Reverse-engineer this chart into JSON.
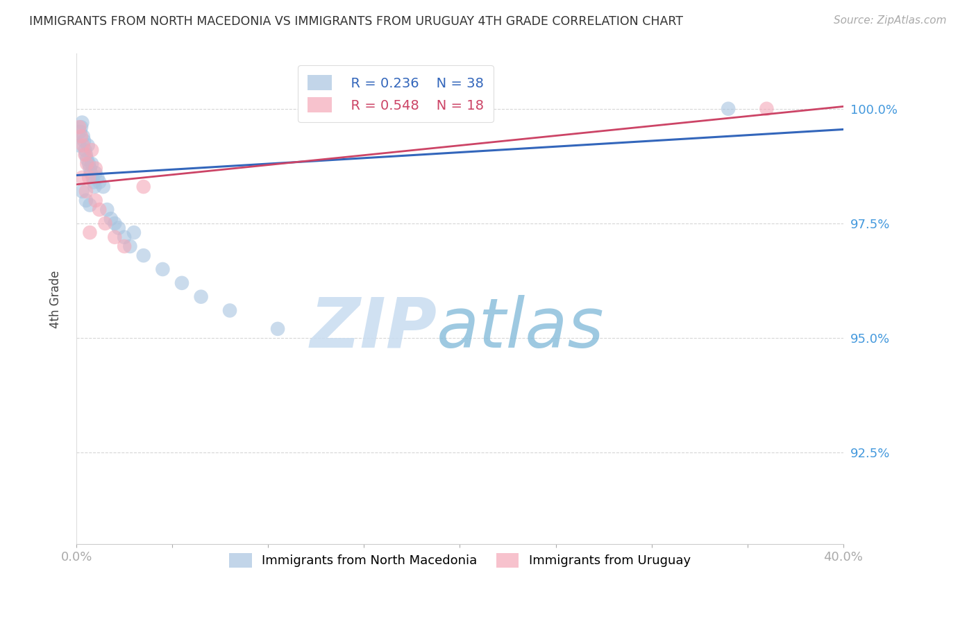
{
  "title": "IMMIGRANTS FROM NORTH MACEDONIA VS IMMIGRANTS FROM URUGUAY 4TH GRADE CORRELATION CHART",
  "source": "Source: ZipAtlas.com",
  "ylabel": "4th Grade",
  "ylabel_ticks": [
    92.5,
    95.0,
    97.5,
    100.0
  ],
  "ylabel_tick_labels": [
    "92.5%",
    "95.0%",
    "97.5%",
    "100.0%"
  ],
  "xlim": [
    0.0,
    40.0
  ],
  "ylim": [
    90.5,
    101.2
  ],
  "blue_color": "#A8C4E0",
  "pink_color": "#F4A8B8",
  "blue_line_color": "#3366BB",
  "pink_line_color": "#CC4466",
  "tick_color": "#4499DD",
  "legend_blue_r": "R = 0.236",
  "legend_blue_n": "N = 38",
  "legend_pink_r": "R = 0.548",
  "legend_pink_n": "N = 18",
  "blue_line_x0": 0.0,
  "blue_line_y0": 98.55,
  "blue_line_x1": 40.0,
  "blue_line_y1": 99.55,
  "pink_line_x0": 0.0,
  "pink_line_y0": 98.35,
  "pink_line_x1": 40.0,
  "pink_line_y1": 100.05,
  "blue_scatter_x": [
    0.15,
    0.2,
    0.25,
    0.3,
    0.35,
    0.4,
    0.45,
    0.5,
    0.55,
    0.6,
    0.65,
    0.7,
    0.75,
    0.8,
    0.85,
    0.9,
    0.95,
    1.0,
    1.1,
    1.2,
    1.4,
    1.6,
    1.8,
    2.0,
    2.2,
    2.5,
    2.8,
    3.0,
    3.5,
    4.5,
    5.5,
    6.5,
    8.0,
    10.5,
    0.3,
    0.5,
    0.7,
    34.0
  ],
  "blue_scatter_y": [
    99.2,
    99.5,
    99.6,
    99.7,
    99.4,
    99.3,
    99.1,
    99.0,
    98.9,
    99.2,
    98.8,
    98.7,
    98.6,
    98.8,
    98.5,
    98.4,
    98.3,
    98.6,
    98.5,
    98.4,
    98.3,
    97.8,
    97.6,
    97.5,
    97.4,
    97.2,
    97.0,
    97.3,
    96.8,
    96.5,
    96.2,
    95.9,
    95.6,
    95.2,
    98.2,
    98.0,
    97.9,
    100.0
  ],
  "pink_scatter_x": [
    0.15,
    0.25,
    0.35,
    0.45,
    0.55,
    0.65,
    0.8,
    1.0,
    1.2,
    1.5,
    2.0,
    2.5,
    3.5,
    0.3,
    0.5,
    0.7,
    1.0,
    36.0
  ],
  "pink_scatter_y": [
    99.6,
    99.4,
    99.2,
    99.0,
    98.8,
    98.5,
    99.1,
    98.7,
    97.8,
    97.5,
    97.2,
    97.0,
    98.3,
    98.5,
    98.2,
    97.3,
    98.0,
    100.0
  ],
  "watermark_zip": "ZIP",
  "watermark_atlas": "atlas",
  "background_color": "#FFFFFF",
  "grid_color": "#CCCCCC"
}
